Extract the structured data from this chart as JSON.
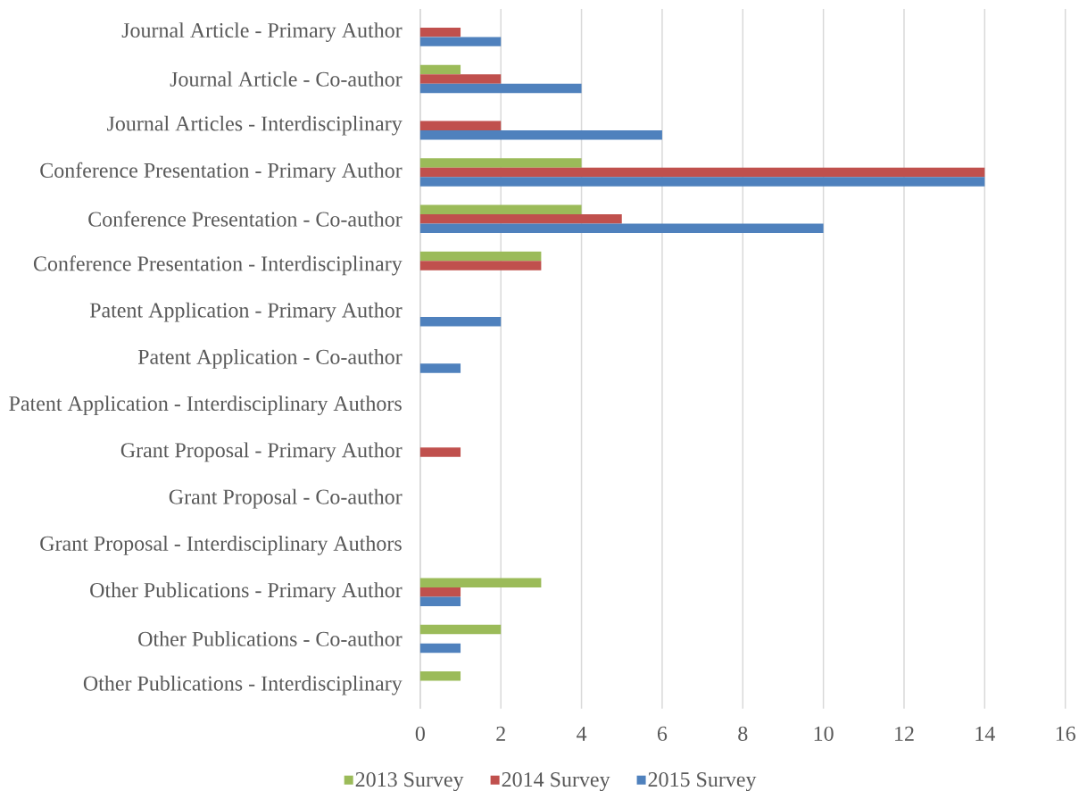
{
  "chart_data": {
    "type": "bar",
    "orientation": "horizontal",
    "categories": [
      "Journal Article - Primary Author",
      "Journal Article - Co-author",
      "Journal Articles - Interdisciplinary",
      "Conference Presentation - Primary Author",
      "Conference Presentation - Co-author",
      "Conference Presentation - Interdisciplinary",
      "Patent Application - Primary Author",
      "Patent Application - Co-author",
      "Patent Application - Interdisciplinary Authors",
      "Grant Proposal - Primary Author",
      "Grant Proposal - Co-author",
      "Grant Proposal - Interdisciplinary Authors",
      "Other Publications - Primary Author",
      "Other Publications - Co-author",
      "Other Publications - Interdisciplinary"
    ],
    "series": [
      {
        "name": "2013 Survey",
        "color": "#9bbb59",
        "values": [
          null,
          1,
          null,
          4,
          4,
          3,
          null,
          null,
          null,
          null,
          null,
          null,
          3,
          2,
          1
        ]
      },
      {
        "name": "2014 Survey",
        "color": "#c0504d",
        "values": [
          1,
          2,
          2,
          14,
          5,
          3,
          null,
          null,
          null,
          1,
          null,
          null,
          1,
          null,
          null
        ]
      },
      {
        "name": "2015 Survey",
        "color": "#4f81bd",
        "values": [
          2,
          4,
          6,
          14,
          10,
          null,
          2,
          1,
          null,
          null,
          null,
          null,
          1,
          1,
          null
        ]
      }
    ],
    "xlim": [
      0,
      16
    ],
    "xticks": [
      0,
      2,
      4,
      6,
      8,
      10,
      12,
      14,
      16
    ],
    "grid": "x",
    "legend": "bottom"
  }
}
